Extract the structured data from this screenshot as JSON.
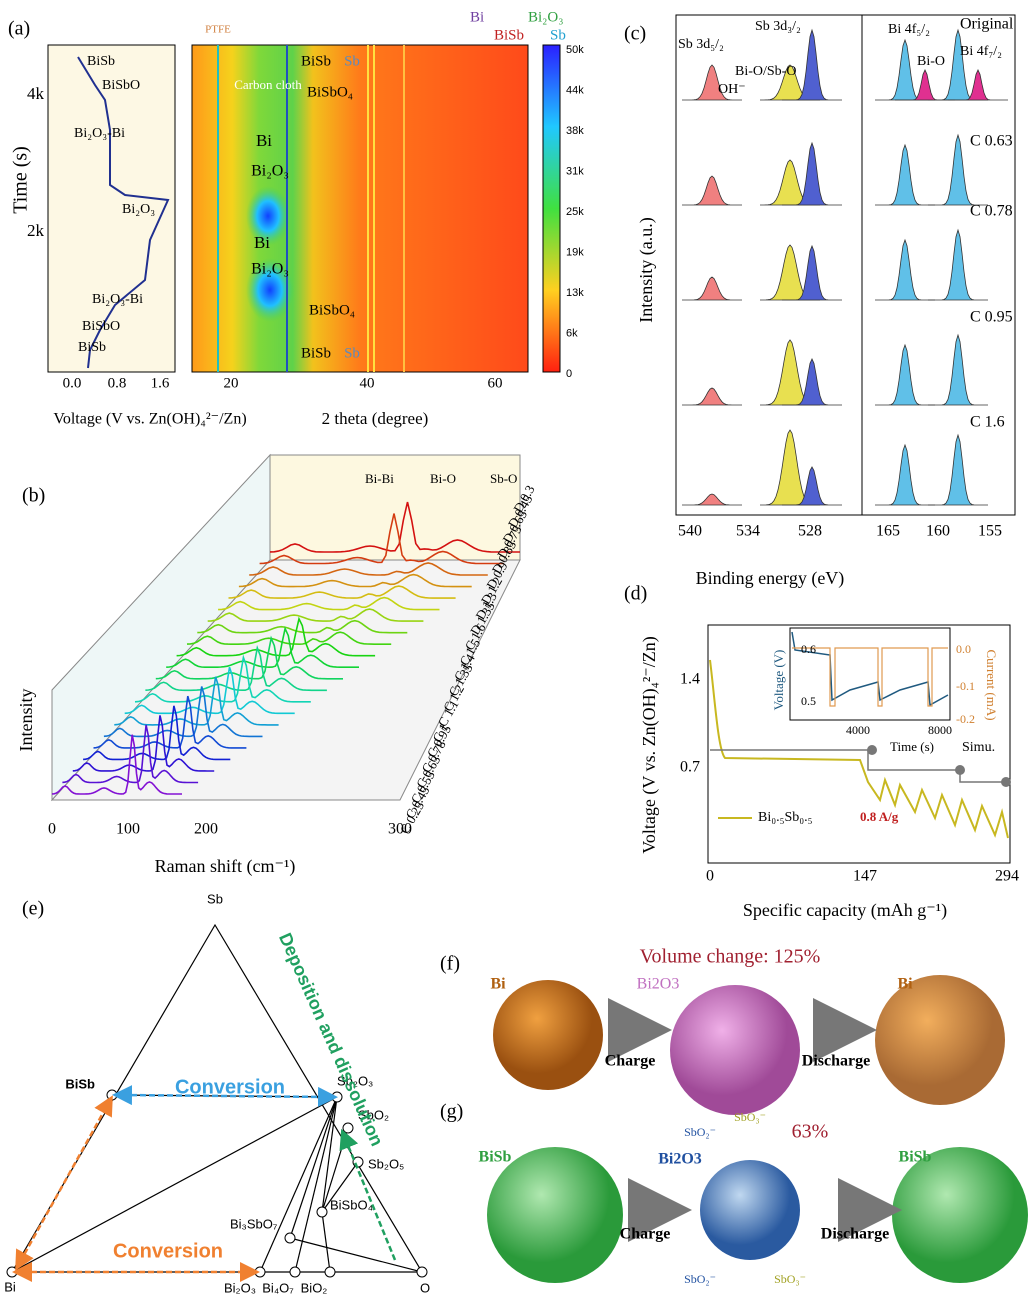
{
  "a": {
    "label": "(a)",
    "y_title": "Time (s)",
    "y_ticks": [
      "4k",
      "2k"
    ],
    "x_ticks": [
      "0.0",
      "0.8",
      "1.6"
    ],
    "x_title": "Voltage (V vs. Zn(OH)₄²⁻/Zn)",
    "curve_labels": [
      "BiSb",
      "BiSbO",
      "Bi₂O₃-Bi",
      "Bi₂O₃",
      "Bi₂O₃-Bi",
      "BiSbO",
      "BiSb"
    ],
    "map": {
      "x_ticks": [
        "20",
        "40",
        "60"
      ],
      "x_title": "2 theta (degree)",
      "labels": [
        "PTFE",
        "Carbon cloth",
        "BiSb",
        "Sb",
        "BiSbO₄",
        "Bi",
        "Bi₂O₃",
        "Bi",
        "Bi₂O₃",
        "BiSbO₄",
        "BiSb",
        "Sb"
      ],
      "legend": [
        "Bi",
        "Bi₂O₃",
        "BiSb",
        "Sb"
      ],
      "colorbar_ticks": [
        "50k",
        "44k",
        "38k",
        "31k",
        "25k",
        "19k",
        "13k",
        "6k",
        "0"
      ]
    }
  },
  "b": {
    "label": "(b)",
    "peak_labels": [
      "Bi-Bi",
      "Bi-O",
      "Sb-O"
    ],
    "spectra": [
      "D 0.3",
      "D 0.45",
      "D 0.65",
      "D 0.75",
      "D 0.85",
      "D 0.9",
      "D 1.2",
      "D 1.3",
      "D 1.35",
      "C 1.6",
      "C 1.5",
      "C 1.4",
      "C 1.35",
      "C 1.2",
      "C 1.1",
      "C 1",
      "C 0.95",
      "C 0.78",
      "C 0.63",
      "C 0.55",
      "C 0.45",
      "C 0.25"
    ],
    "y_title": "Intensity",
    "x_ticks": [
      "0",
      "100",
      "200",
      "300"
    ],
    "x_title": "Raman shift (cm⁻¹)"
  },
  "c": {
    "label": "(c)",
    "peak_labels": [
      "Sb 3d₅/₂",
      "Sb 3d₃/₂",
      "Bi-O/Sb-O",
      "OH⁻",
      "Bi 4f₅/₂",
      "Bi-O",
      "Bi 4f₇/₂"
    ],
    "rows": [
      "Original",
      "C 0.63",
      "C 0.78",
      "C 0.95",
      "C 1.6"
    ],
    "y_title": "Intensity (a.u.)",
    "x_ticks": [
      "540",
      "534",
      "528",
      "165",
      "160",
      "155"
    ],
    "x_title": "Binding energy (eV)"
  },
  "d": {
    "label": "(d)",
    "y_title": "Voltage (V vs. Zn(OH)₄²⁻/Zn)",
    "y_ticks": [
      "1.4",
      "0.7"
    ],
    "x_ticks": [
      "0",
      "147",
      "294"
    ],
    "x_title": "Specific capacity (mAh g⁻¹)",
    "legend": "Bi₀.₅Sb₀.₅",
    "rate": "0.8 A/g",
    "simu": "Simu.",
    "inset": {
      "y_title": "Voltage (V)",
      "y_ticks": [
        "0.6",
        "0.5"
      ],
      "y2_title": "Current (mA)",
      "y2_ticks": [
        "0.0",
        "-0.1",
        "-0.2"
      ],
      "x_ticks": [
        "4000",
        "8000"
      ],
      "x_title": "Time (s)"
    }
  },
  "e": {
    "label": "(e)",
    "nodes": [
      "Sb",
      "BiSb",
      "Sb₂O₃",
      "SbO₂",
      "Sb₂O₅",
      "BiSbO₄",
      "Bi₃SbO₇",
      "Bi",
      "Bi₂O₃",
      "Bi₄O₇",
      "BiO₂",
      "O"
    ],
    "arrows": [
      "Conversion",
      "Conversion",
      "Deposition and dissolution"
    ]
  },
  "f": {
    "label": "(f)",
    "texts": [
      "Bi",
      "Volume change: 125%",
      "Bi2O3",
      "Charge",
      "Discharge",
      "Bi"
    ]
  },
  "g": {
    "label": "(g)",
    "texts": [
      "BiSb",
      "SbO₂⁻",
      "SbO₃⁻",
      "63%",
      "Bi2O3",
      "Charge",
      "Discharge",
      "BiSb",
      "SbO₂⁻",
      "SbO₃⁻"
    ]
  }
}
